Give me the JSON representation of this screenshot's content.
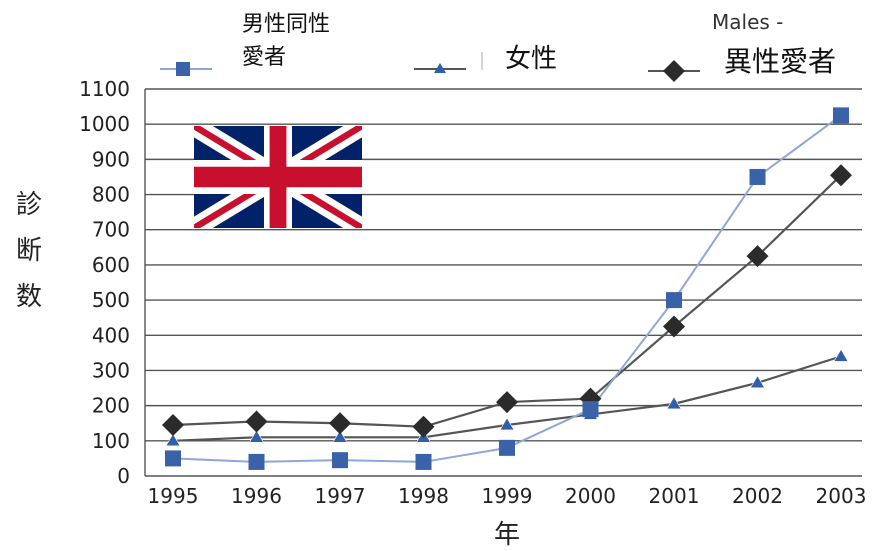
{
  "chart_data": {
    "type": "line",
    "categories": [
      "1995",
      "1996",
      "1997",
      "1998",
      "1999",
      "2000",
      "2001",
      "2002",
      "2003"
    ],
    "series": [
      {
        "name": "男性同性愛者",
        "color": "#3a62a8",
        "line_color": "#8fa7d6",
        "marker": "square",
        "values": [
          50,
          40,
          45,
          40,
          80,
          190,
          500,
          850,
          1025
        ]
      },
      {
        "name": "女性",
        "color": "#2f5fa8",
        "line_color": "#555555",
        "marker": "triangle",
        "values": [
          100,
          110,
          110,
          110,
          145,
          175,
          205,
          265,
          340
        ]
      },
      {
        "name": "異性愛者",
        "color": "#2b2b2b",
        "line_color": "#555555",
        "marker": "diamond",
        "values": [
          145,
          155,
          150,
          140,
          210,
          220,
          425,
          625,
          855
        ]
      }
    ],
    "ylabel": "診断数",
    "xlabel": "年",
    "ylim": [
      0,
      1100
    ],
    "yticks": [
      0,
      100,
      200,
      300,
      400,
      500,
      600,
      700,
      800,
      900,
      1000,
      1100
    ],
    "grid": true,
    "legend_position": "top"
  },
  "legend_labels": {
    "s0_line1": "男性同性",
    "s0_line2": "愛者",
    "s1": "女性",
    "s2": "異性愛者"
  },
  "overlay": {
    "stray_text": "Males -",
    "flag": "uk-flag"
  },
  "axis": {
    "ylabel_chars": [
      "診",
      "断",
      "数"
    ],
    "xlabel": "年"
  }
}
